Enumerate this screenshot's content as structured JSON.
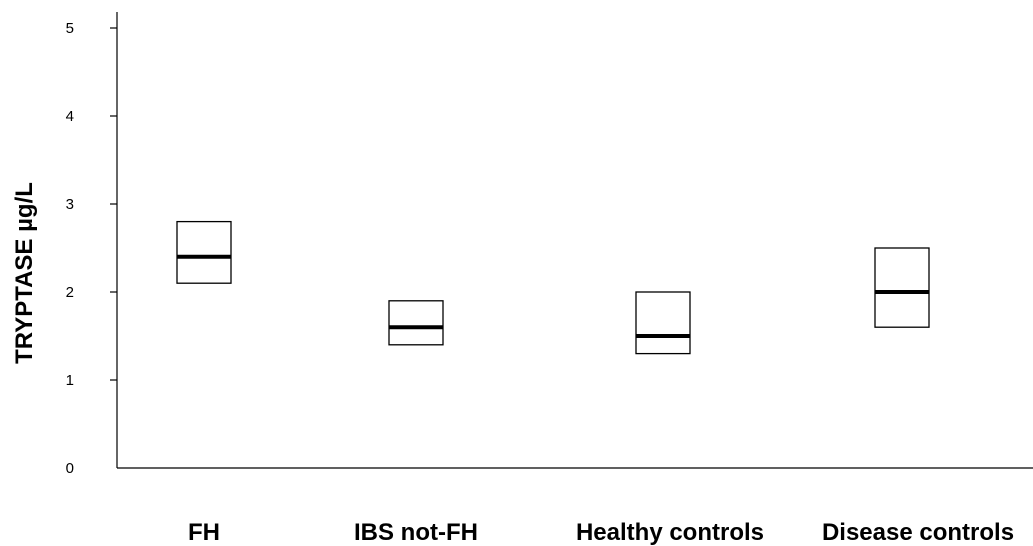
{
  "chart_data": {
    "type": "box",
    "title": "",
    "xlabel": "",
    "ylabel": "TRYPTASE µg/L",
    "ylim": [
      0,
      5
    ],
    "yticks": [
      "0",
      "1",
      "2",
      "3",
      "4",
      "5"
    ],
    "grid": false,
    "categories": [
      "FH",
      "IBS not-FH",
      "Healthy controls",
      "Disease controls"
    ],
    "boxes": [
      {
        "category": "FH",
        "low": 2.1,
        "median": 2.4,
        "high": 2.8
      },
      {
        "category": "IBS not-FH",
        "low": 1.4,
        "median": 1.6,
        "high": 1.9
      },
      {
        "category": "Healthy controls",
        "low": 1.3,
        "median": 1.5,
        "high": 2.0
      },
      {
        "category": "Disease controls",
        "low": 1.6,
        "median": 2.0,
        "high": 2.5
      }
    ],
    "colors": {
      "box_stroke": "#000000",
      "median_line": "#000000",
      "axis": "#000000"
    }
  }
}
